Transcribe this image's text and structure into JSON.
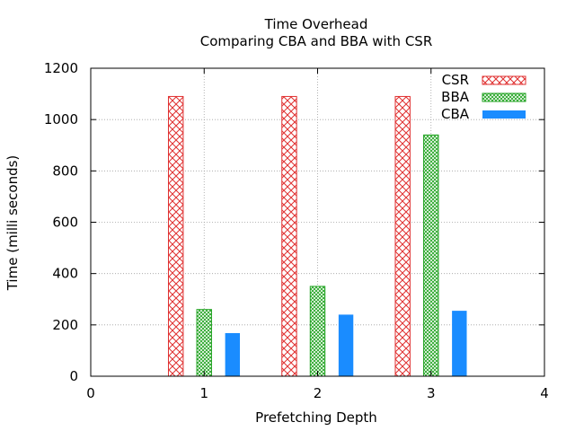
{
  "chart_data": {
    "type": "bar",
    "title": "Time Overhead",
    "subtitle": "Comparing CBA and BBA with CSR",
    "xlabel": "Prefetching Depth",
    "ylabel": "Time (milli seconds)",
    "xlim": [
      0,
      4
    ],
    "ylim": [
      0,
      1200
    ],
    "x_ticks": [
      "0",
      "1",
      "2",
      "3",
      "4"
    ],
    "y_ticks": [
      "0",
      "200",
      "400",
      "600",
      "800",
      "1000",
      "1200"
    ],
    "grid": true,
    "legend_position": "top-right",
    "categories": [
      1,
      2,
      3
    ],
    "series": [
      {
        "name": "CSR",
        "values": [
          1090,
          1090,
          1090
        ],
        "color": "#e03030",
        "pattern": "crosshatch"
      },
      {
        "name": "BBA",
        "values": [
          260,
          350,
          940
        ],
        "color": "#21a321",
        "pattern": "fine-hatch"
      },
      {
        "name": "CBA",
        "values": [
          168,
          240,
          255
        ],
        "color": "#1a8cff",
        "pattern": "solid"
      }
    ]
  }
}
